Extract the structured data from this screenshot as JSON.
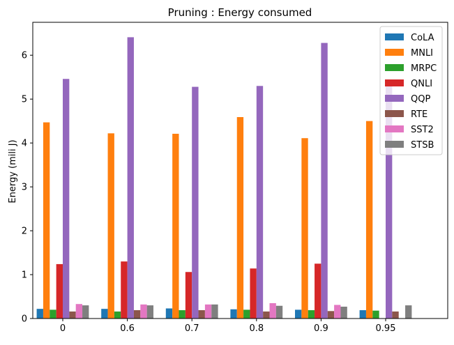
{
  "chart_data": {
    "type": "bar",
    "title": "Pruning : Energy consumed",
    "xlabel": "",
    "ylabel": "Energy (mili J)",
    "categories": [
      "0",
      "0.6",
      "0.7",
      "0.8",
      "0.9",
      "0.95"
    ],
    "ylim": [
      0,
      6.75
    ],
    "yticks": [
      "0",
      "1",
      "2",
      "3",
      "4",
      "5",
      "6"
    ],
    "grid": false,
    "legend_position": "top-right",
    "series": [
      {
        "name": "CoLA",
        "color": "#1f77b4",
        "values": [
          0.22,
          0.22,
          0.23,
          0.21,
          0.2,
          0.19
        ]
      },
      {
        "name": "MNLI",
        "color": "#ff7f0e",
        "values": [
          4.47,
          4.22,
          4.21,
          4.59,
          4.11,
          4.5
        ]
      },
      {
        "name": "MRPC",
        "color": "#2ca02c",
        "values": [
          0.2,
          0.16,
          0.19,
          0.2,
          0.19,
          0.18
        ]
      },
      {
        "name": "QNLI",
        "color": "#d62728",
        "values": [
          1.24,
          1.3,
          1.06,
          1.14,
          1.25,
          0.0
        ]
      },
      {
        "name": "QQP",
        "color": "#9467bd",
        "values": [
          5.46,
          6.41,
          5.28,
          5.3,
          6.28,
          5.4
        ]
      },
      {
        "name": "RTE",
        "color": "#8c564b",
        "values": [
          0.16,
          0.19,
          0.19,
          0.16,
          0.17,
          0.16
        ]
      },
      {
        "name": "SST2",
        "color": "#e377c2",
        "values": [
          0.33,
          0.32,
          0.32,
          0.35,
          0.31,
          0.0
        ]
      },
      {
        "name": "STSB",
        "color": "#7f7f7f",
        "values": [
          0.3,
          0.3,
          0.32,
          0.29,
          0.27,
          0.3
        ]
      }
    ]
  }
}
